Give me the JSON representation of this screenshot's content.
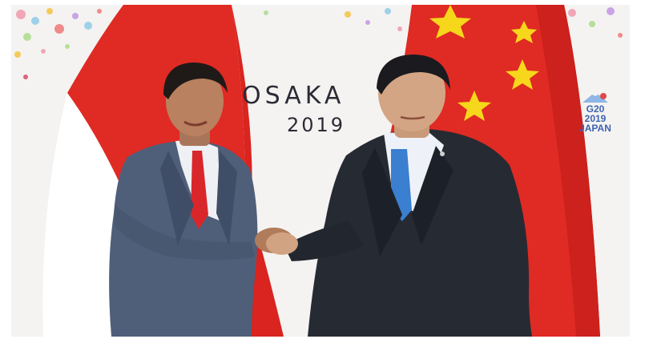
{
  "backdrop": {
    "city": "OSAKA",
    "year": "2019"
  },
  "summit_logo": {
    "title": "G20",
    "year": "2019",
    "country": "JAPAN"
  },
  "colors": {
    "flag_red": "#e02a24",
    "star_yellow": "#f6d71b",
    "backdrop": "#f4f3f1",
    "text_dark": "#2b2b35",
    "logo_blue": "#3d63b4"
  }
}
